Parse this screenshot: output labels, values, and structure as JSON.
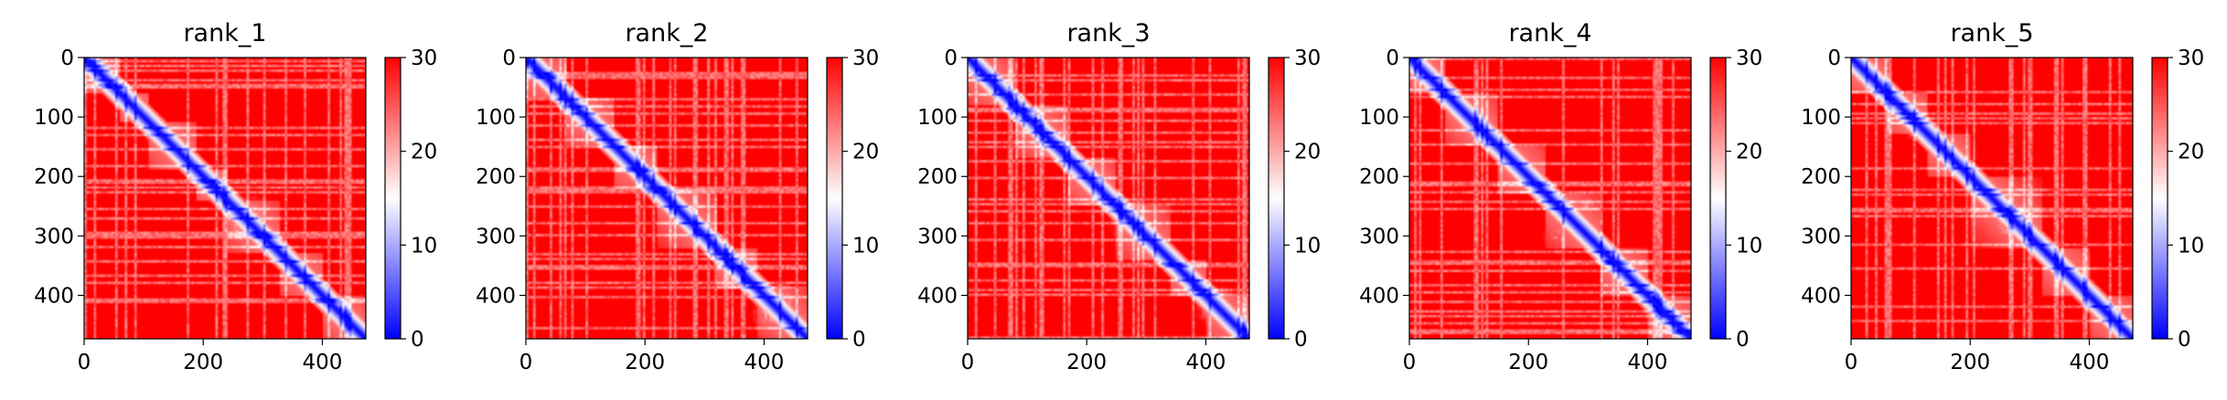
{
  "chart_data": [
    {
      "type": "heatmap",
      "title": "rank_1",
      "xlabel": "",
      "ylabel": "",
      "xlim": [
        0,
        473
      ],
      "ylim": [
        473,
        0
      ],
      "xticks": [
        0,
        200,
        400
      ],
      "yticks": [
        0,
        100,
        200,
        300,
        400
      ],
      "colorbar": {
        "range": [
          0,
          30
        ],
        "ticks": [
          0,
          10,
          20,
          30
        ],
        "colormap": [
          "#0000ff",
          "#ffffff",
          "#ff0000"
        ]
      },
      "domains": [
        [
          0,
          60
        ],
        [
          60,
          110
        ],
        [
          110,
          190
        ],
        [
          190,
          240
        ],
        [
          240,
          330
        ],
        [
          330,
          400
        ],
        [
          400,
          473
        ]
      ],
      "features": [
        {
          "x": 30,
          "y": 20,
          "r": 30,
          "strength": 0.5
        },
        {
          "x": 280,
          "y": 270,
          "r": 45,
          "strength": 0.5
        },
        {
          "x": 130,
          "y": 120,
          "r": 22,
          "strength": 0.35
        },
        {
          "x": 435,
          "y": 430,
          "r": 28,
          "strength": 0.35
        }
      ]
    },
    {
      "type": "heatmap",
      "title": "rank_2",
      "xlabel": "",
      "ylabel": "",
      "xlim": [
        0,
        473
      ],
      "ylim": [
        473,
        0
      ],
      "xticks": [
        0,
        200,
        400
      ],
      "yticks": [
        0,
        100,
        200,
        300,
        400
      ],
      "colorbar": {
        "range": [
          0,
          30
        ],
        "ticks": [
          0,
          10,
          20,
          30
        ],
        "colormap": [
          "#0000ff",
          "#ffffff",
          "#ff0000"
        ]
      },
      "domains": [
        [
          0,
          70
        ],
        [
          70,
          150
        ],
        [
          150,
          220
        ],
        [
          220,
          320
        ],
        [
          320,
          390
        ],
        [
          390,
          473
        ]
      ],
      "features": [
        {
          "x": 110,
          "y": 110,
          "r": 35,
          "strength": 0.55
        },
        {
          "x": 270,
          "y": 270,
          "r": 40,
          "strength": 0.5
        },
        {
          "x": 430,
          "y": 410,
          "r": 35,
          "strength": 0.5
        },
        {
          "x": 40,
          "y": 30,
          "r": 25,
          "strength": 0.25
        }
      ]
    },
    {
      "type": "heatmap",
      "title": "rank_3",
      "xlabel": "",
      "ylabel": "",
      "xlim": [
        0,
        473
      ],
      "ylim": [
        473,
        0
      ],
      "xticks": [
        0,
        200,
        400
      ],
      "yticks": [
        0,
        100,
        200,
        300,
        400
      ],
      "colorbar": {
        "range": [
          0,
          30
        ],
        "ticks": [
          0,
          10,
          20,
          30
        ],
        "colormap": [
          "#0000ff",
          "#ffffff",
          "#ff0000"
        ]
      },
      "domains": [
        [
          0,
          80
        ],
        [
          80,
          170
        ],
        [
          170,
          250
        ],
        [
          250,
          340
        ],
        [
          340,
          400
        ],
        [
          400,
          473
        ]
      ],
      "features": [
        {
          "x": 140,
          "y": 130,
          "r": 40,
          "strength": 0.35
        },
        {
          "x": 280,
          "y": 270,
          "r": 40,
          "strength": 0.3
        },
        {
          "x": 420,
          "y": 420,
          "r": 40,
          "strength": 0.55
        }
      ]
    },
    {
      "type": "heatmap",
      "title": "rank_4",
      "xlabel": "",
      "ylabel": "",
      "xlim": [
        0,
        473
      ],
      "ylim": [
        473,
        0
      ],
      "xticks": [
        0,
        200,
        400
      ],
      "yticks": [
        0,
        100,
        200,
        300,
        400
      ],
      "colorbar": {
        "range": [
          0,
          30
        ],
        "ticks": [
          0,
          10,
          20,
          30
        ],
        "colormap": [
          "#0000ff",
          "#ffffff",
          "#ff0000"
        ]
      },
      "domains": [
        [
          0,
          60
        ],
        [
          60,
          150
        ],
        [
          150,
          230
        ],
        [
          230,
          320
        ],
        [
          320,
          400
        ],
        [
          400,
          473
        ]
      ],
      "features": [
        {
          "x": 110,
          "y": 100,
          "r": 40,
          "strength": 0.45
        },
        {
          "x": 260,
          "y": 260,
          "r": 35,
          "strength": 0.45
        },
        {
          "x": 300,
          "y": 250,
          "r": 30,
          "strength": 0.35
        },
        {
          "x": 430,
          "y": 420,
          "r": 30,
          "strength": 0.35
        }
      ]
    },
    {
      "type": "heatmap",
      "title": "rank_5",
      "xlabel": "",
      "ylabel": "",
      "xlim": [
        0,
        473
      ],
      "ylim": [
        473,
        0
      ],
      "xticks": [
        0,
        200,
        400
      ],
      "yticks": [
        0,
        100,
        200,
        300,
        400
      ],
      "colorbar": {
        "range": [
          0,
          30
        ],
        "ticks": [
          0,
          10,
          20,
          30
        ],
        "colormap": [
          "#0000ff",
          "#ffffff",
          "#ff0000"
        ]
      },
      "domains": [
        [
          0,
          60
        ],
        [
          60,
          130
        ],
        [
          130,
          200
        ],
        [
          200,
          320
        ],
        [
          320,
          400
        ],
        [
          400,
          473
        ]
      ],
      "features": [
        {
          "x": 30,
          "y": 20,
          "r": 30,
          "strength": 0.5
        },
        {
          "x": 120,
          "y": 110,
          "r": 25,
          "strength": 0.35
        },
        {
          "x": 280,
          "y": 270,
          "r": 45,
          "strength": 0.5
        },
        {
          "x": 440,
          "y": 430,
          "r": 25,
          "strength": 0.3
        }
      ]
    }
  ]
}
